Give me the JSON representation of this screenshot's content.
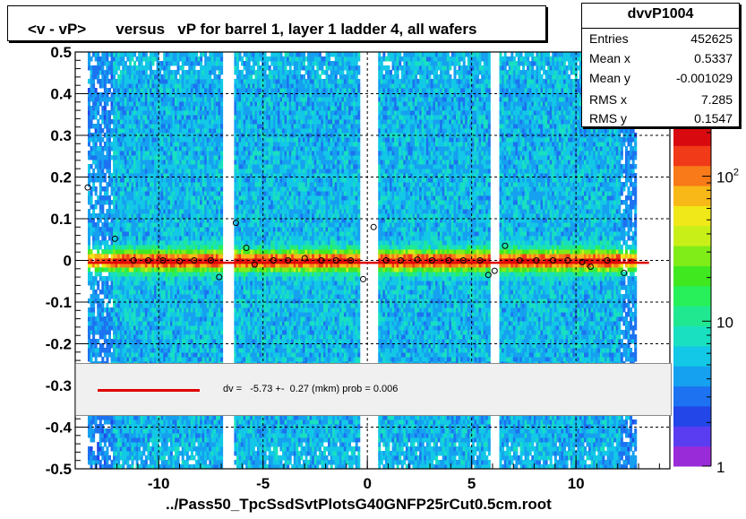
{
  "title": "<v - vP>       versus   vP for barrel 1, layer 1 ladder 4, all wafers",
  "stats": {
    "name": "dvvP1004",
    "rows": [
      {
        "label": "Entries",
        "value": "452625"
      },
      {
        "label": "Mean x",
        "value": "0.5337"
      },
      {
        "label": "Mean y",
        "value": "-0.001029"
      },
      {
        "label": "RMS x",
        "value": "7.285"
      },
      {
        "label": "RMS y",
        "value": "0.1547"
      }
    ]
  },
  "fit_text": "dv =   -5.73 +-  0.27 (mkm) prob = 0.006",
  "footer": "../Pass50_TpcSsdSvtPlotsG40GNFP25rCut0.5cm.root",
  "colors": {
    "fit_line": "#e00000",
    "frame": "#000000"
  },
  "chart_data": {
    "type": "heatmap",
    "title": "<v - vP>       versus   vP for barrel 1, layer 1 ladder 4, all wafers",
    "xlim": [
      -14,
      14.5
    ],
    "ylim": [
      -0.5,
      0.5
    ],
    "x_ticks": [
      -10,
      -5,
      0,
      5,
      10
    ],
    "y_ticks": [
      -0.5,
      -0.4,
      -0.3,
      -0.2,
      -0.1,
      0,
      0.1,
      0.2,
      0.3,
      0.4,
      0.5
    ],
    "x_tick_labels": [
      "-10",
      "-5",
      "0",
      "5",
      "10"
    ],
    "y_tick_labels": [
      "-0.5",
      "-0.4",
      "-0.3",
      "-0.2",
      "-0.1",
      "0",
      "0.1",
      "0.2",
      "0.3",
      "0.4",
      "0.5"
    ],
    "grid": true,
    "colorbar": {
      "scale": "log",
      "ticks": [
        1,
        10,
        100
      ],
      "tick_labels": [
        "1",
        "10",
        "10^2"
      ]
    },
    "gaps": [
      [
        -6.9,
        -6.4
      ],
      [
        -0.4,
        0.5
      ],
      [
        5.9,
        6.3
      ]
    ],
    "fit_line": {
      "x0": -13.4,
      "x1": 13.5,
      "y": -0.00573
    },
    "profile_points": [
      {
        "x": -13.4,
        "y": 0.175
      },
      {
        "x": -12.1,
        "y": 0.052
      },
      {
        "x": -11.2,
        "y": 0.0
      },
      {
        "x": -10.5,
        "y": 0.0
      },
      {
        "x": -9.8,
        "y": 0.0
      },
      {
        "x": -9.0,
        "y": -0.002
      },
      {
        "x": -8.3,
        "y": 0.0
      },
      {
        "x": -7.5,
        "y": 0.0
      },
      {
        "x": -7.1,
        "y": -0.04
      },
      {
        "x": -6.3,
        "y": 0.09
      },
      {
        "x": -5.8,
        "y": 0.03
      },
      {
        "x": -5.4,
        "y": -0.01
      },
      {
        "x": -4.5,
        "y": 0.0
      },
      {
        "x": -3.8,
        "y": 0.0
      },
      {
        "x": -3.0,
        "y": 0.005
      },
      {
        "x": -2.2,
        "y": 0.0
      },
      {
        "x": -1.5,
        "y": 0.0
      },
      {
        "x": -0.8,
        "y": 0.0
      },
      {
        "x": -0.2,
        "y": -0.045
      },
      {
        "x": 0.3,
        "y": 0.08
      },
      {
        "x": 0.9,
        "y": 0.0
      },
      {
        "x": 1.6,
        "y": 0.0
      },
      {
        "x": 2.4,
        "y": 0.002
      },
      {
        "x": 3.1,
        "y": 0.0
      },
      {
        "x": 3.9,
        "y": 0.0
      },
      {
        "x": 4.6,
        "y": 0.0
      },
      {
        "x": 5.4,
        "y": 0.0
      },
      {
        "x": 5.8,
        "y": -0.035
      },
      {
        "x": 6.1,
        "y": -0.025
      },
      {
        "x": 6.6,
        "y": 0.035
      },
      {
        "x": 7.3,
        "y": 0.0
      },
      {
        "x": 8.1,
        "y": 0.0
      },
      {
        "x": 8.9,
        "y": 0.0
      },
      {
        "x": 9.6,
        "y": 0.0
      },
      {
        "x": 10.3,
        "y": -0.004
      },
      {
        "x": 10.7,
        "y": -0.015
      },
      {
        "x": 11.5,
        "y": 0.0
      },
      {
        "x": 12.3,
        "y": -0.03
      }
    ]
  }
}
